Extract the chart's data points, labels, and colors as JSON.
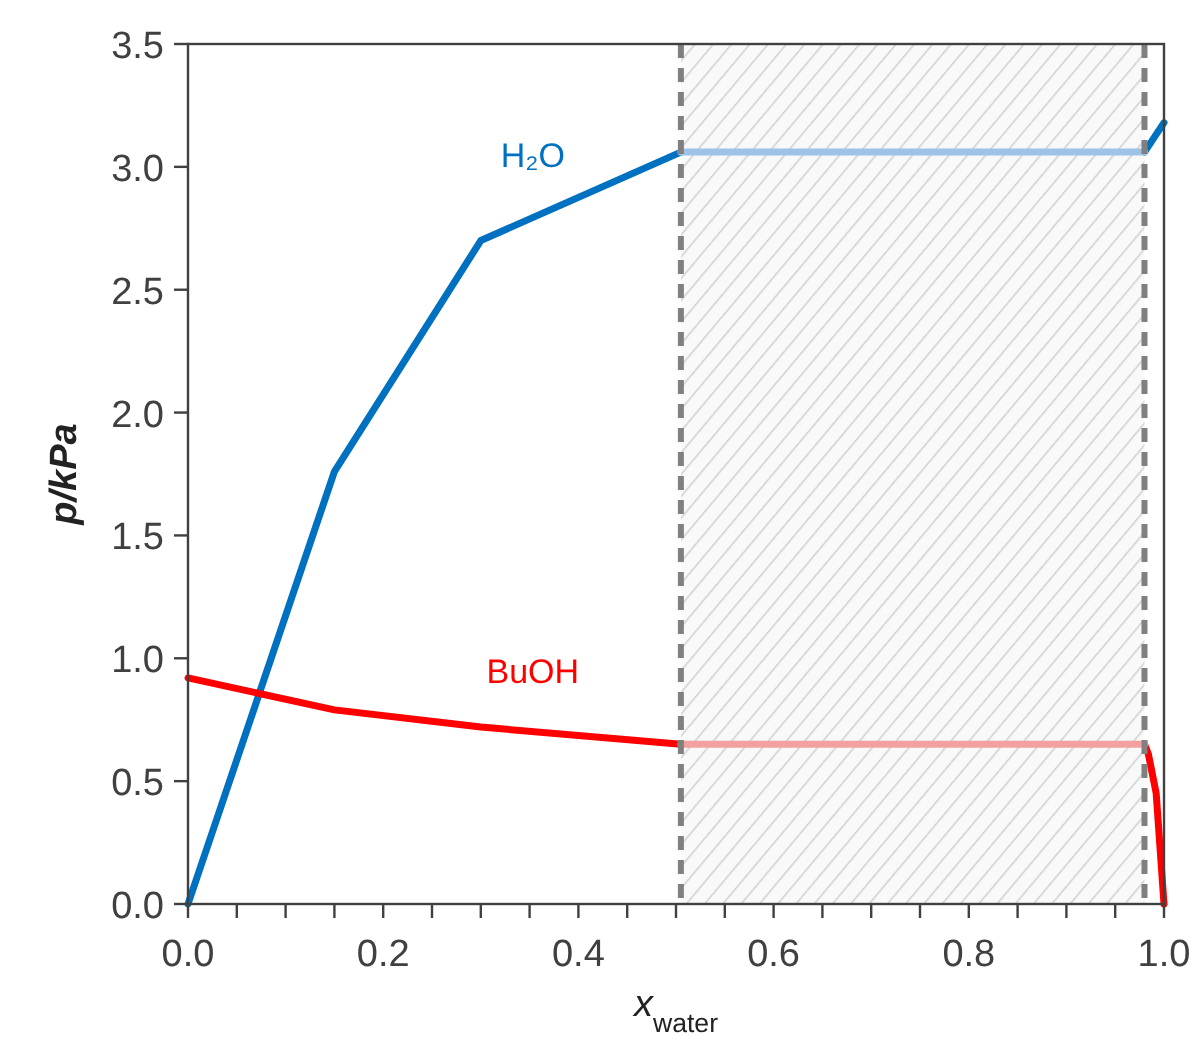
{
  "chart_data": {
    "type": "line",
    "xlabel": "x$_{water}$",
    "ylabel": "p/kPa",
    "xlim": [
      0,
      1
    ],
    "ylim": [
      0,
      3.5
    ],
    "xticks": [
      {
        "value": 0,
        "label": "0.0"
      },
      {
        "value": 0.05,
        "label": null
      },
      {
        "value": 0.1,
        "label": null
      },
      {
        "value": 0.15,
        "label": null
      },
      {
        "value": 0.2,
        "label": "0.2"
      },
      {
        "value": 0.25,
        "label": null
      },
      {
        "value": 0.3,
        "label": null
      },
      {
        "value": 0.35,
        "label": null
      },
      {
        "value": 0.4,
        "label": "0.4"
      },
      {
        "value": 0.45,
        "label": null
      },
      {
        "value": 0.5,
        "label": null
      },
      {
        "value": 0.55,
        "label": null
      },
      {
        "value": 0.6,
        "label": "0.6"
      },
      {
        "value": 0.65,
        "label": null
      },
      {
        "value": 0.7,
        "label": null
      },
      {
        "value": 0.75,
        "label": null
      },
      {
        "value": 0.8,
        "label": "0.8"
      },
      {
        "value": 0.85,
        "label": null
      },
      {
        "value": 0.9,
        "label": null
      },
      {
        "value": 0.95,
        "label": null
      },
      {
        "value": 1,
        "label": "1.0"
      }
    ],
    "yticks": [
      {
        "value": 0,
        "label": "0.0"
      },
      {
        "value": 0.5,
        "label": "0.5"
      },
      {
        "value": 1,
        "label": "1.0"
      },
      {
        "value": 1.5,
        "label": "1.5"
      },
      {
        "value": 2,
        "label": "2.0"
      },
      {
        "value": 2.5,
        "label": "2.5"
      },
      {
        "value": 3,
        "label": "3.0"
      },
      {
        "value": 3.5,
        "label": "3.5"
      }
    ],
    "series": [
      {
        "name": "H₂O",
        "color": "#0070c0",
        "x": [
          0,
          0.15,
          0.3,
          0.505,
          null,
          0.98,
          1.0
        ],
        "values": [
          0,
          1.76,
          2.7,
          3.06,
          null,
          3.06,
          3.18
        ]
      },
      {
        "color": "#9dc3e6",
        "x": [
          0.505,
          0.98
        ],
        "values": [
          3.06,
          3.06
        ]
      },
      {
        "name": "BuOH",
        "color": "#ff0000",
        "x": [
          0,
          0.15,
          0.3,
          0.505,
          null,
          0.98,
          0.984,
          0.992,
          1.0
        ],
        "values": [
          0.92,
          0.79,
          0.72,
          0.65,
          null,
          0.65,
          0.61,
          0.45,
          0
        ]
      },
      {
        "color": "#f4a0a0",
        "x": [
          0.505,
          0.98
        ],
        "values": [
          0.65,
          0.65
        ]
      }
    ],
    "bands": [
      {
        "axis": "x",
        "from": 0.505,
        "to": 0.98,
        "color": "#d9d9d9"
      }
    ],
    "ref_lines": [
      {
        "axis": "x",
        "value": 0.505,
        "color": "#808080",
        "line_style": "dashed"
      },
      {
        "axis": "x",
        "value": 0.98,
        "color": "#808080",
        "line_style": "dashed"
      }
    ],
    "grid": false,
    "marker": "none",
    "line_style": "solid"
  }
}
